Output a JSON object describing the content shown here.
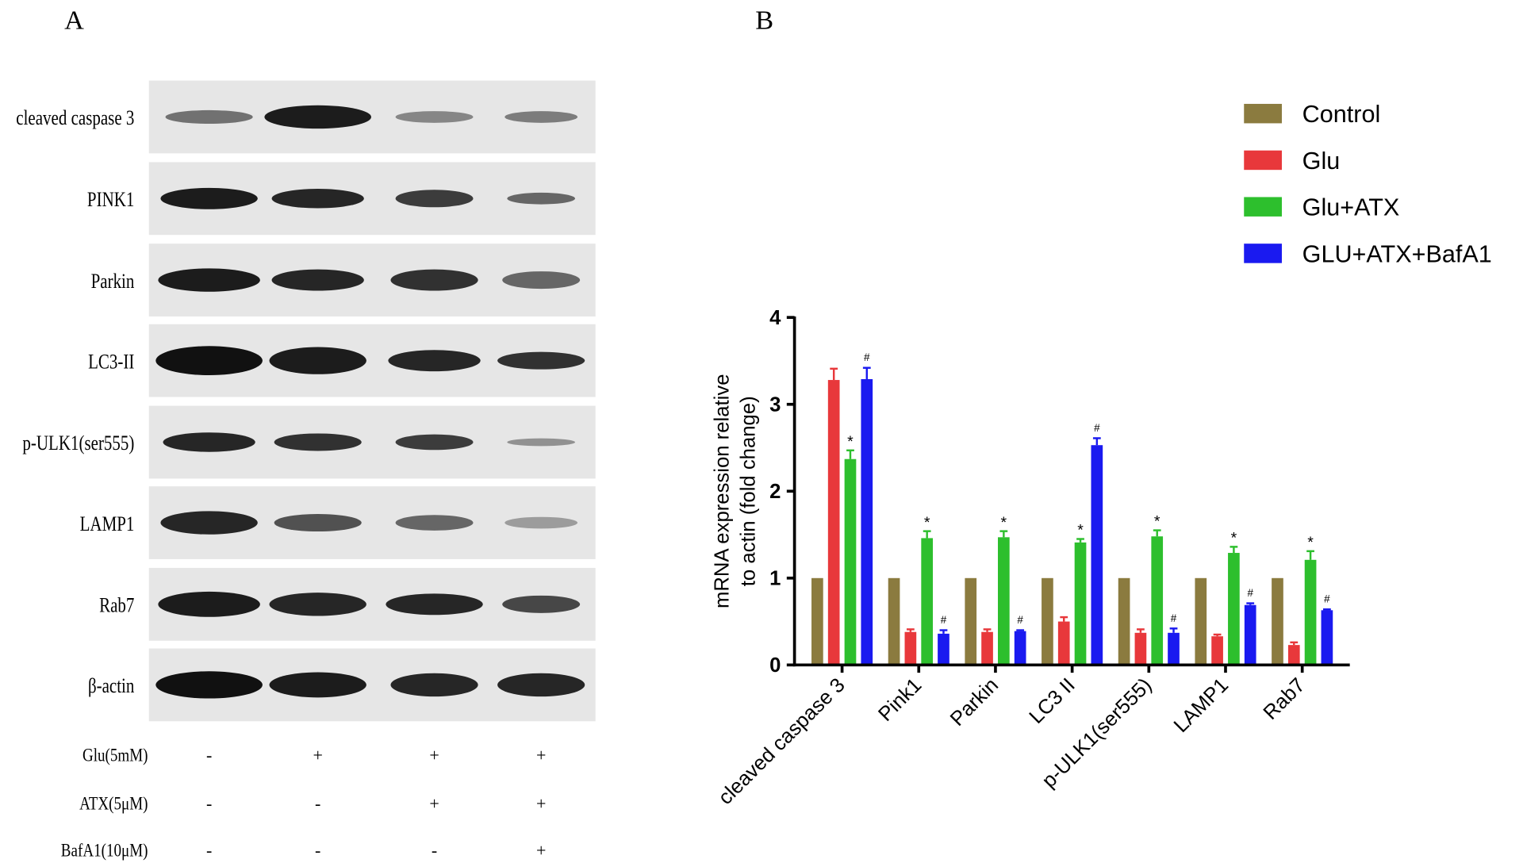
{
  "panels": {
    "a": "A",
    "b": "B"
  },
  "blot": {
    "rows": [
      "cleaved caspase 3",
      "PINK1",
      "Parkin",
      "LC3-II",
      "p-ULK1(ser555)",
      "LAMP1",
      "Rab7",
      "β-actin"
    ],
    "treatments": [
      {
        "name": "Glu(5mM)",
        "signs": [
          "-",
          "+",
          "+",
          "+"
        ]
      },
      {
        "name": "ATX(5μM)",
        "signs": [
          "-",
          "-",
          "+",
          "+"
        ]
      },
      {
        "name": "BafA1(10μM)",
        "signs": [
          "-",
          "-",
          "-",
          "+"
        ]
      }
    ]
  },
  "chart_data": {
    "type": "bar",
    "ylabel": [
      "mRNA expression relative",
      "to actin (fold change)"
    ],
    "categories": [
      "cleaved caspase 3",
      "Pink1",
      "Parkin",
      "LC3 II",
      "p-ULK1(ser555)",
      "LAMP1",
      "Rab7"
    ],
    "ylim": [
      0,
      4
    ],
    "yticks": [
      0,
      1,
      2,
      3,
      4
    ],
    "legend": "top-right",
    "series": [
      {
        "name": "Control",
        "color": "#8b7b3f",
        "values": [
          1,
          1,
          1,
          1,
          1,
          1,
          1
        ]
      },
      {
        "name": "Glu",
        "color": "#e8383b",
        "values": [
          3.28,
          0.38,
          0.38,
          0.5,
          0.37,
          0.33,
          0.23
        ],
        "errors": [
          0.13,
          0.03,
          0.03,
          0.05,
          0.04,
          0.02,
          0.03
        ]
      },
      {
        "name": "Glu+ATX",
        "color": "#2dbf2d",
        "values": [
          2.37,
          1.46,
          1.47,
          1.41,
          1.48,
          1.29,
          1.21
        ],
        "errors": [
          0.1,
          0.08,
          0.07,
          0.04,
          0.07,
          0.07,
          0.1
        ],
        "annotations": [
          "*",
          "*",
          "*",
          "*",
          "*",
          "*",
          "*"
        ]
      },
      {
        "name": "GLU+ATX+BafA1",
        "color": "#1a1af0",
        "values": [
          3.29,
          0.36,
          0.39,
          2.53,
          0.37,
          0.69,
          0.63
        ],
        "errors": [
          0.13,
          0.04,
          0.01,
          0.08,
          0.05,
          0.02,
          0.01
        ],
        "annotations": [
          "#",
          "#",
          "#",
          "#",
          "#",
          "#",
          "#"
        ]
      }
    ]
  }
}
